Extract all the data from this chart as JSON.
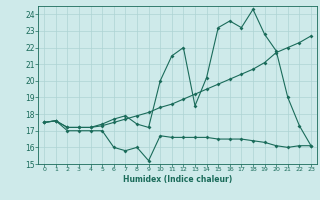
{
  "xlabel": "Humidex (Indice chaleur)",
  "bg_color": "#ceeaea",
  "grid_color": "#aed4d4",
  "line_color": "#1a6b5a",
  "xlim": [
    -0.5,
    23.5
  ],
  "ylim": [
    15,
    24.5
  ],
  "yticks": [
    15,
    16,
    17,
    18,
    19,
    20,
    21,
    22,
    23,
    24
  ],
  "xticks": [
    0,
    1,
    2,
    3,
    4,
    5,
    6,
    7,
    8,
    9,
    10,
    11,
    12,
    13,
    14,
    15,
    16,
    17,
    18,
    19,
    20,
    21,
    22,
    23
  ],
  "line1_x": [
    0,
    1,
    2,
    3,
    4,
    5,
    6,
    7,
    8,
    9,
    10,
    11,
    12,
    13,
    14,
    15,
    16,
    17,
    18,
    19,
    20,
    21,
    22,
    23
  ],
  "line1_y": [
    17.5,
    17.6,
    17.0,
    17.0,
    17.0,
    17.0,
    16.0,
    15.8,
    16.0,
    15.2,
    16.7,
    16.6,
    16.6,
    16.6,
    16.6,
    16.5,
    16.5,
    16.5,
    16.4,
    16.3,
    16.1,
    16.0,
    16.1,
    16.1
  ],
  "line2_x": [
    0,
    1,
    2,
    3,
    4,
    5,
    6,
    7,
    8,
    9,
    10,
    11,
    12,
    13,
    14,
    15,
    16,
    17,
    18,
    19,
    20,
    21,
    22,
    23
  ],
  "line2_y": [
    17.5,
    17.6,
    17.2,
    17.2,
    17.2,
    17.3,
    17.5,
    17.7,
    17.9,
    18.1,
    18.4,
    18.6,
    18.9,
    19.2,
    19.5,
    19.8,
    20.1,
    20.4,
    20.7,
    21.1,
    21.7,
    22.0,
    22.3,
    22.7
  ],
  "line3_x": [
    0,
    1,
    2,
    3,
    4,
    5,
    6,
    7,
    8,
    9,
    10,
    11,
    12,
    13,
    14,
    15,
    16,
    17,
    18,
    19,
    20,
    21,
    22,
    23
  ],
  "line3_y": [
    17.5,
    17.6,
    17.2,
    17.2,
    17.2,
    17.4,
    17.7,
    17.9,
    17.4,
    17.2,
    20.0,
    21.5,
    22.0,
    18.5,
    20.2,
    23.2,
    23.6,
    23.2,
    24.3,
    22.8,
    21.8,
    19.0,
    17.3,
    16.1
  ]
}
